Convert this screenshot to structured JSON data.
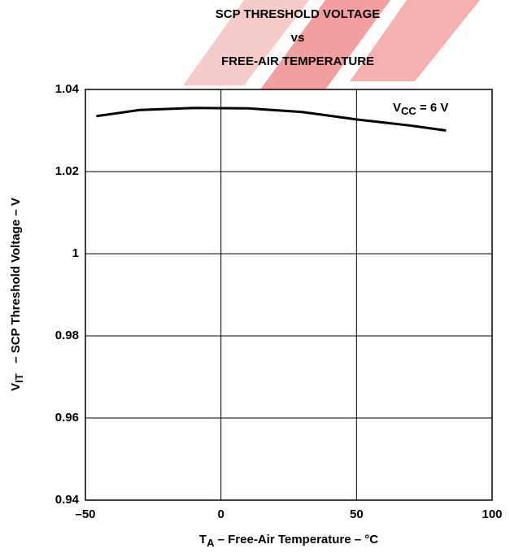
{
  "chart_data": {
    "type": "line",
    "title": [
      "SCP THRESHOLD VOLTAGE",
      "vs",
      "FREE-AIR TEMPERATURE"
    ],
    "xlabel_parts": [
      "T",
      "A",
      " – Free-Air Temperature – °C"
    ],
    "ylabel_parts": [
      "V",
      "IT",
      "   – SCP Threshold Voltage – V"
    ],
    "annotation_parts": [
      "V",
      "CC",
      " = 6 V"
    ],
    "x": [
      -46,
      -30,
      -10,
      10,
      30,
      50,
      70,
      83
    ],
    "series": [
      {
        "color": "#000000",
        "values": [
          1.0335,
          1.035,
          1.0355,
          1.0354,
          1.0345,
          1.0327,
          1.0312,
          1.03
        ]
      }
    ],
    "xlim": [
      -50,
      100
    ],
    "xticks": [
      {
        "value": -50,
        "label": "–50"
      },
      0,
      50,
      100
    ],
    "ylim": [
      0.94,
      1.04
    ],
    "yticks": [
      0.94,
      0.96,
      0.98,
      1,
      1.02,
      1.04
    ],
    "grid": true
  }
}
